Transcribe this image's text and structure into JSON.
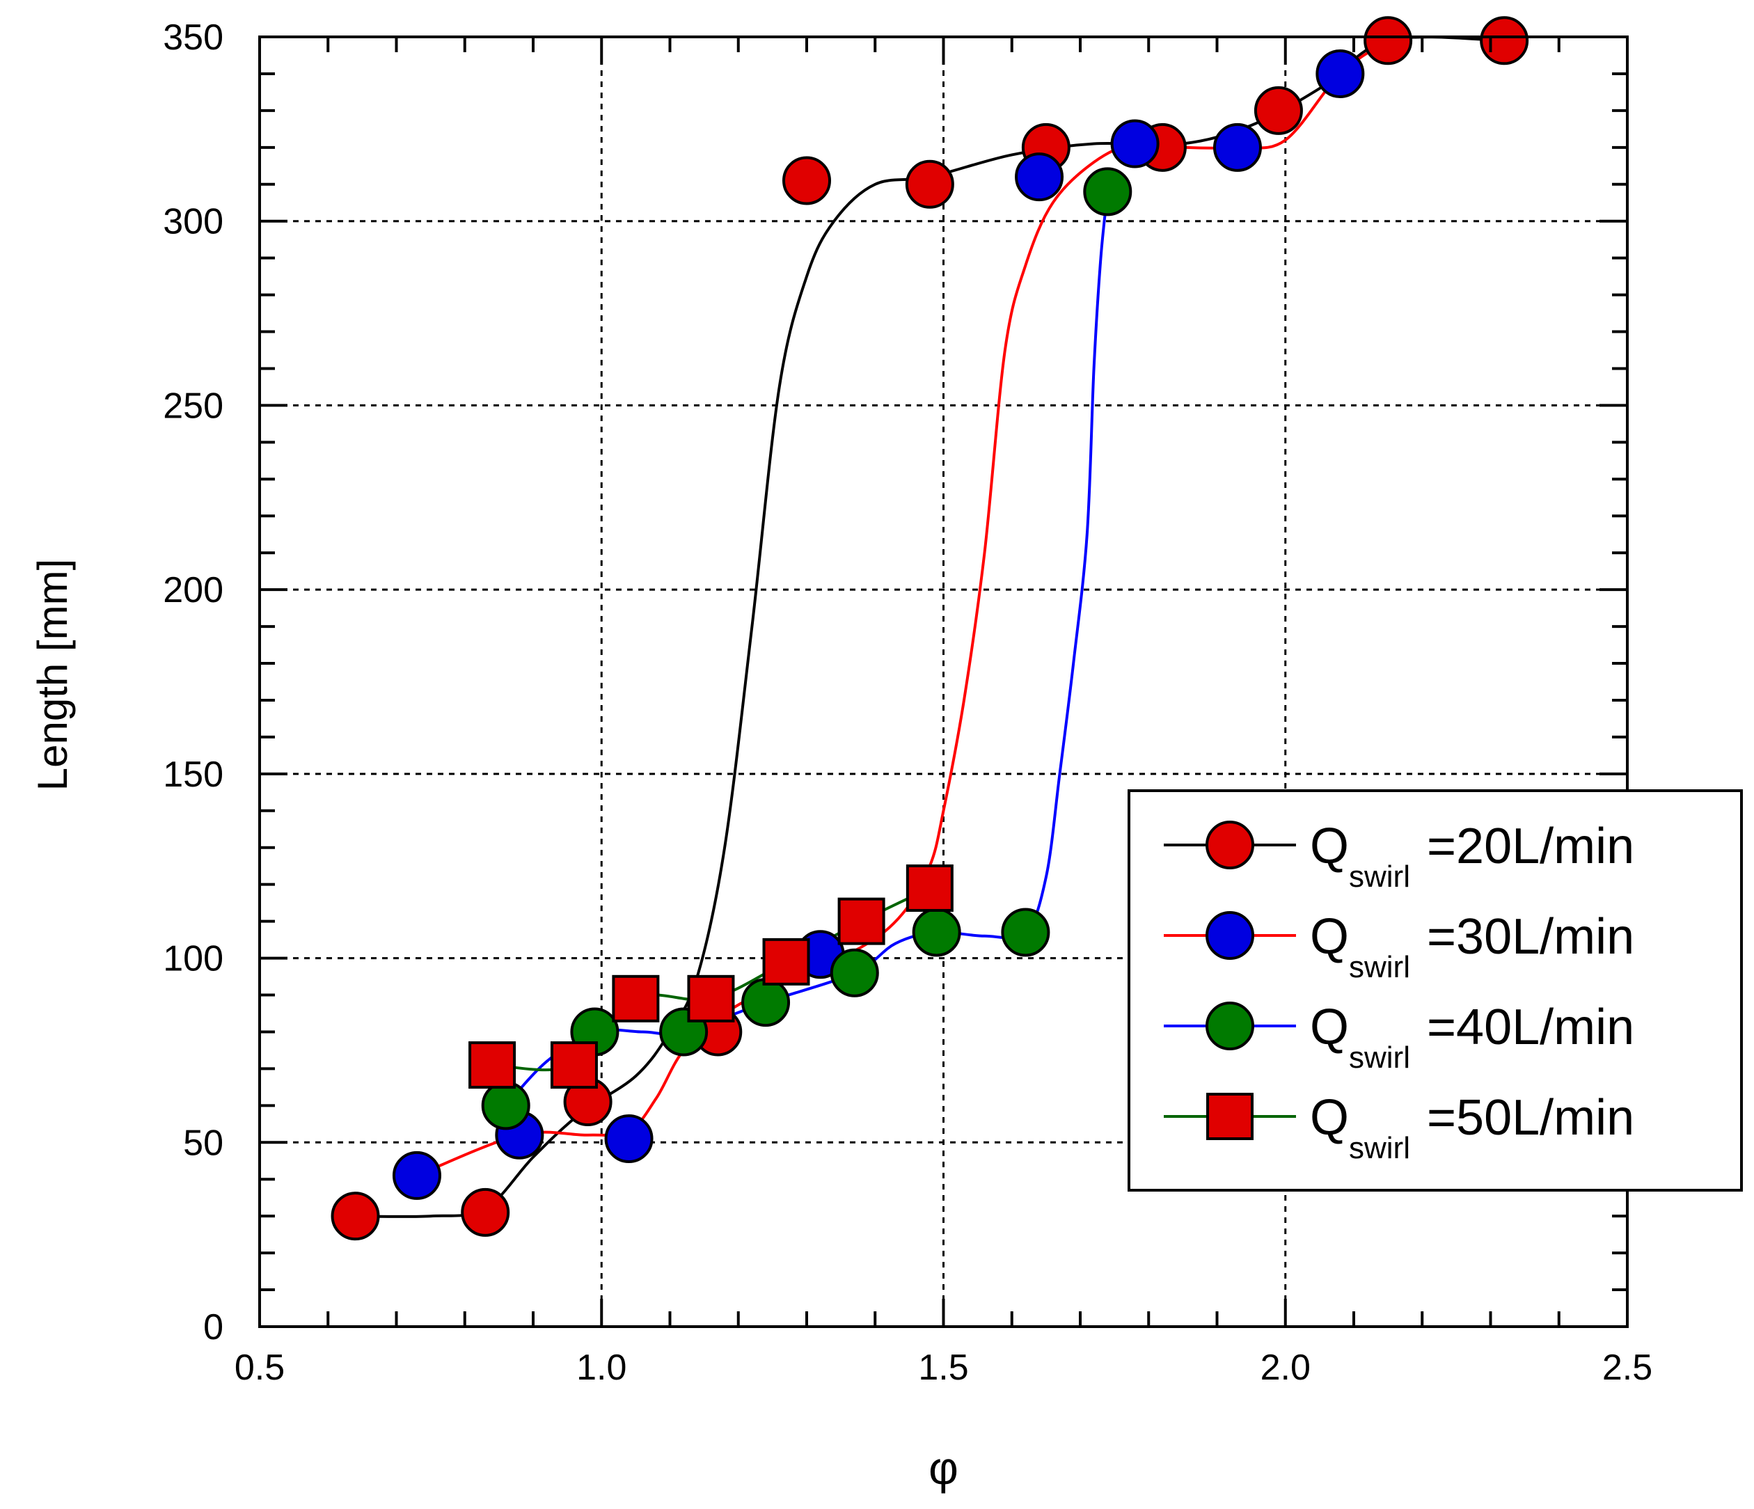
{
  "chart_data": {
    "type": "line",
    "title": "",
    "xlabel": "φ",
    "ylabel": "Length [mm]",
    "xlim": [
      0.5,
      2.5
    ],
    "ylim": [
      0,
      350
    ],
    "xticks": [
      0.5,
      1.0,
      1.5,
      2.0,
      2.5
    ],
    "xtick_labels": [
      "0.5",
      "1.0",
      "1.5",
      "2.0",
      "2.5"
    ],
    "yticks": [
      0,
      50,
      100,
      150,
      200,
      250,
      300,
      350
    ],
    "ytick_labels": [
      "0",
      "50",
      "100",
      "150",
      "200",
      "250",
      "300",
      "350"
    ],
    "grid": true,
    "legend_position": "lower-right",
    "series": [
      {
        "name": "Q swirl =20L/min",
        "label_main": "Q",
        "label_sub": "swirl",
        "label_tail": "=20L/min",
        "color": "#000000",
        "marker": "circle",
        "marker_color": "#e00000",
        "points": [
          [
            0.64,
            30
          ],
          [
            0.83,
            31
          ],
          [
            0.98,
            61
          ],
          [
            1.17,
            80
          ],
          [
            1.3,
            311
          ],
          [
            1.48,
            310
          ],
          [
            1.65,
            320
          ],
          [
            1.82,
            320
          ],
          [
            1.99,
            330
          ],
          [
            2.15,
            349
          ],
          [
            2.32,
            349
          ]
        ],
        "curve": [
          [
            0.64,
            30
          ],
          [
            0.75,
            30
          ],
          [
            0.83,
            32
          ],
          [
            0.9,
            46
          ],
          [
            0.97,
            58
          ],
          [
            1.05,
            68
          ],
          [
            1.1,
            80
          ],
          [
            1.14,
            95
          ],
          [
            1.18,
            130
          ],
          [
            1.22,
            190
          ],
          [
            1.26,
            255
          ],
          [
            1.3,
            285
          ],
          [
            1.34,
            300
          ],
          [
            1.4,
            310
          ],
          [
            1.48,
            312
          ],
          [
            1.6,
            318
          ],
          [
            1.72,
            321
          ],
          [
            1.85,
            321
          ],
          [
            1.95,
            326
          ],
          [
            2.05,
            336
          ],
          [
            2.15,
            349
          ],
          [
            2.32,
            349
          ]
        ]
      },
      {
        "name": "Q swirl =30L/min",
        "label_main": "Q",
        "label_sub": "swirl",
        "label_tail": "=30L/min",
        "color": "#ff0000",
        "marker": "circle",
        "marker_color": "#0000e0",
        "points": [
          [
            0.73,
            41
          ],
          [
            0.88,
            52
          ],
          [
            1.04,
            51
          ],
          [
            1.32,
            101
          ],
          [
            1.64,
            312
          ],
          [
            1.78,
            321
          ],
          [
            1.93,
            320
          ],
          [
            2.08,
            340
          ]
        ],
        "curve": [
          [
            0.73,
            41
          ],
          [
            0.88,
            52
          ],
          [
            0.98,
            52
          ],
          [
            1.04,
            53
          ],
          [
            1.08,
            62
          ],
          [
            1.12,
            75
          ],
          [
            1.18,
            85
          ],
          [
            1.28,
            95
          ],
          [
            1.38,
            103
          ],
          [
            1.44,
            112
          ],
          [
            1.48,
            125
          ],
          [
            1.5,
            140
          ],
          [
            1.53,
            170
          ],
          [
            1.56,
            210
          ],
          [
            1.59,
            265
          ],
          [
            1.62,
            288
          ],
          [
            1.66,
            305
          ],
          [
            1.72,
            316
          ],
          [
            1.78,
            321
          ],
          [
            1.85,
            320
          ],
          [
            1.93,
            320
          ],
          [
            2.0,
            322
          ],
          [
            2.08,
            340
          ],
          [
            2.15,
            349
          ]
        ]
      },
      {
        "name": "Q swirl =40L/min",
        "label_main": "Q",
        "label_sub": "swirl",
        "label_tail": "=40L/min",
        "color": "#0000ff",
        "marker": "circle",
        "marker_color": "#007a00",
        "points": [
          [
            0.86,
            60
          ],
          [
            0.99,
            80
          ],
          [
            1.12,
            80
          ],
          [
            1.24,
            88
          ],
          [
            1.37,
            96
          ],
          [
            1.49,
            107
          ],
          [
            1.62,
            107
          ],
          [
            1.74,
            308
          ]
        ],
        "curve": [
          [
            0.86,
            60
          ],
          [
            0.92,
            72
          ],
          [
            0.99,
            80
          ],
          [
            1.06,
            80
          ],
          [
            1.12,
            80
          ],
          [
            1.24,
            88
          ],
          [
            1.37,
            96
          ],
          [
            1.43,
            104
          ],
          [
            1.49,
            107
          ],
          [
            1.56,
            106
          ],
          [
            1.62,
            107
          ],
          [
            1.65,
            122
          ],
          [
            1.67,
            150
          ],
          [
            1.69,
            180
          ],
          [
            1.71,
            215
          ],
          [
            1.72,
            260
          ],
          [
            1.73,
            290
          ],
          [
            1.74,
            308
          ]
        ]
      },
      {
        "name": "Q swirl =50L/min",
        "label_main": "Q",
        "label_sub": "swirl",
        "label_tail": "=50L/min",
        "color": "#006400",
        "marker": "square",
        "marker_color": "#e00000",
        "points": [
          [
            0.84,
            71
          ],
          [
            0.96,
            71
          ],
          [
            1.05,
            89
          ],
          [
            1.16,
            89
          ],
          [
            1.27,
            99
          ],
          [
            1.38,
            110
          ],
          [
            1.48,
            119
          ]
        ],
        "curve": [
          [
            0.84,
            71
          ],
          [
            0.96,
            71
          ],
          [
            1.05,
            89
          ],
          [
            1.16,
            89
          ],
          [
            1.27,
            99
          ],
          [
            1.38,
            110
          ],
          [
            1.48,
            119
          ]
        ]
      }
    ]
  }
}
